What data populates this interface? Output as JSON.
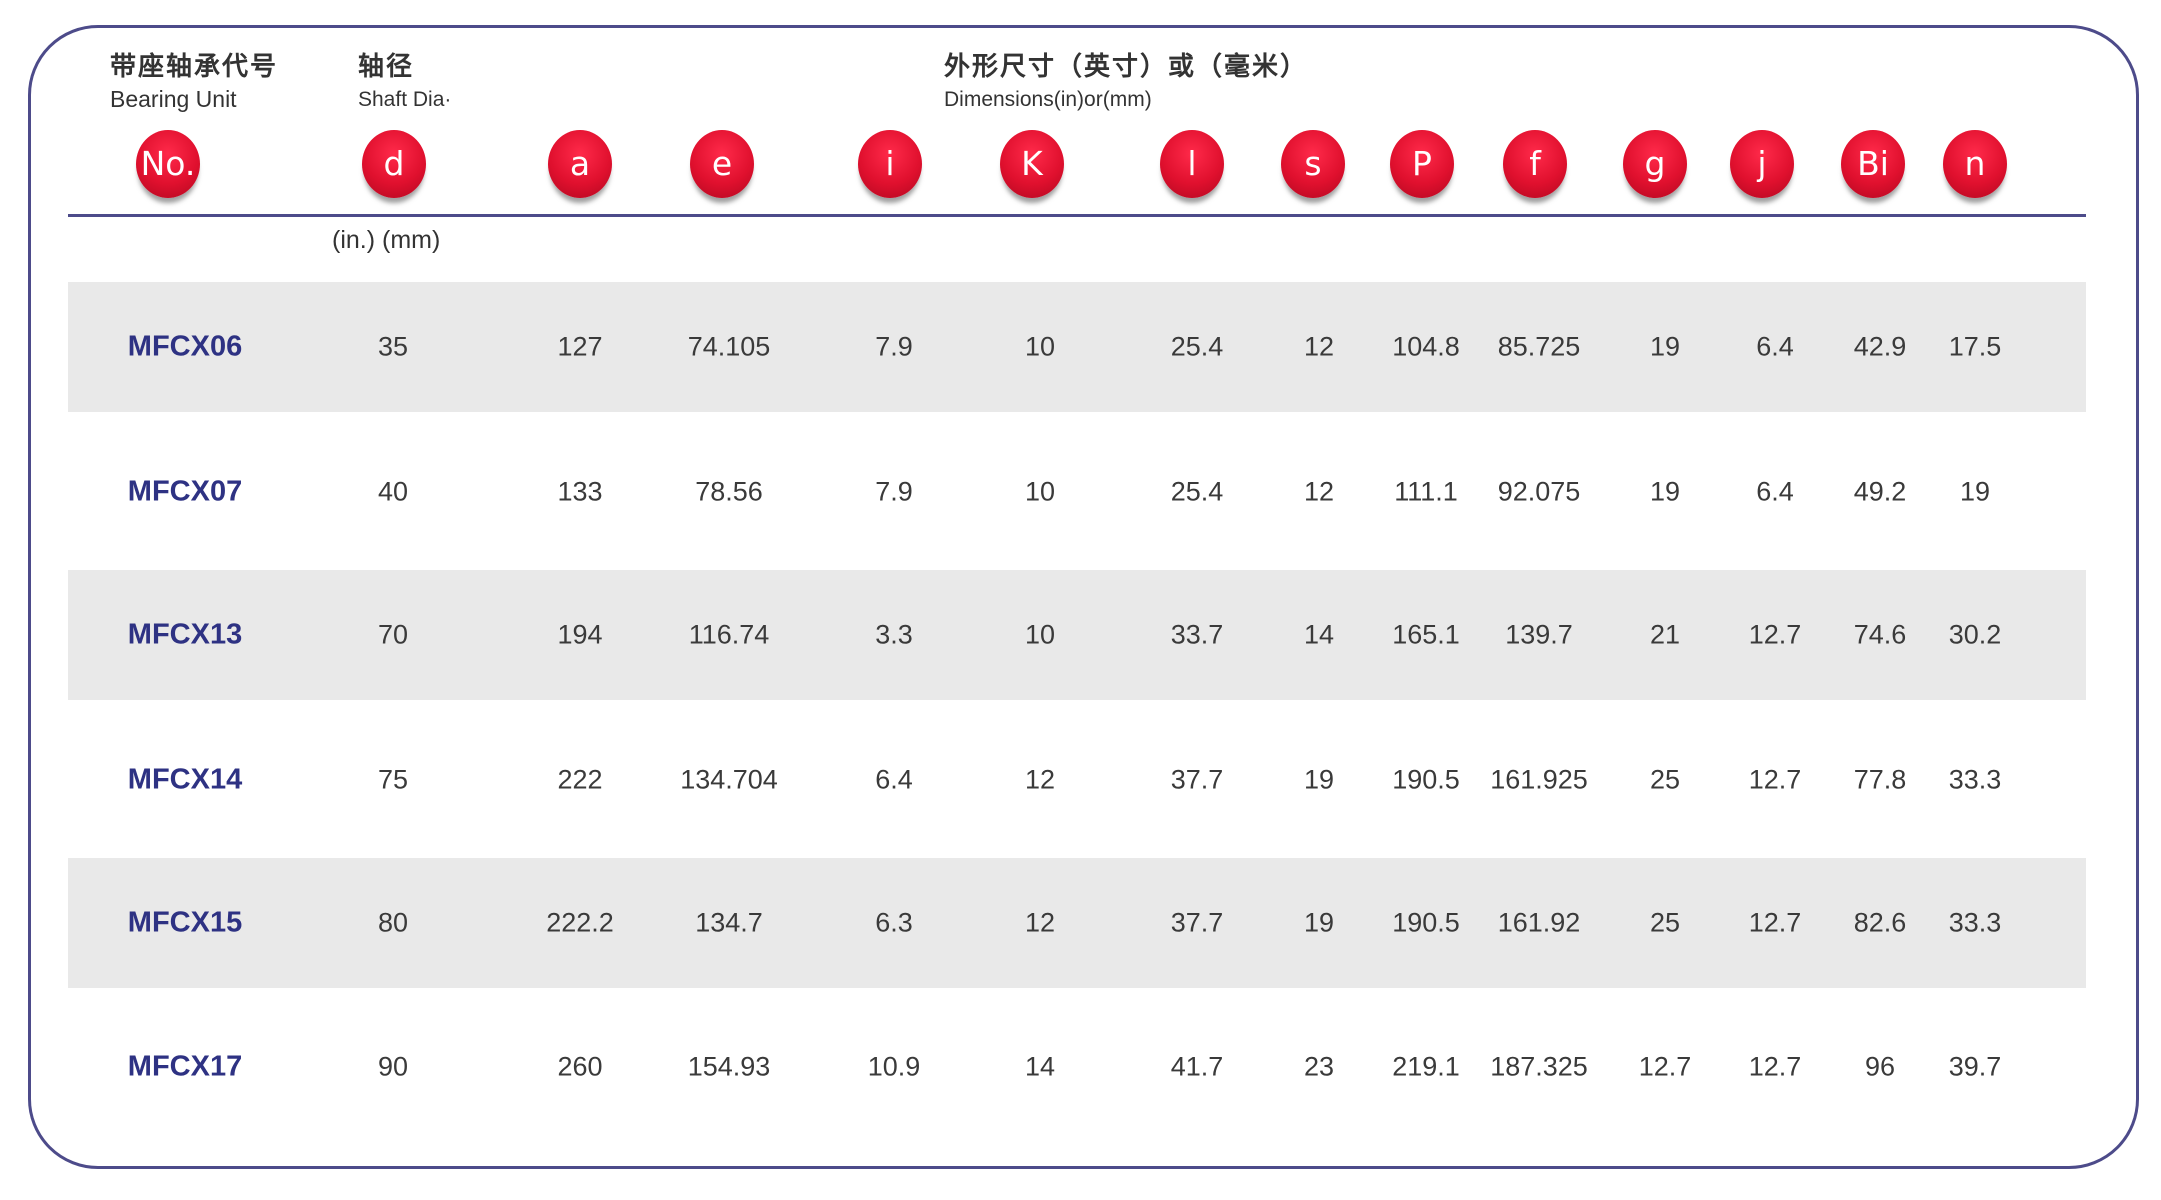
{
  "header": {
    "bearing_unit_cn": "带座轴承代号",
    "bearing_unit_en": "Bearing Unit",
    "shaft_cn": "轴径",
    "shaft_en": "Shaft Dia·",
    "dims_cn": "外形尺寸（英寸）或（毫米）",
    "dims_en": "Dimensions(in)or(mm)",
    "unit_note": "(in.) (mm)"
  },
  "columns": [
    "No.",
    "d",
    "a",
    "e",
    "i",
    "K",
    "l",
    "s",
    "P",
    "f",
    "g",
    "j",
    "Bi",
    "n"
  ],
  "colors": {
    "frame": "#4d4b8a",
    "bubble": "#e0102e",
    "code": "#2e3283",
    "stripe": "#e9e9e9"
  },
  "rows": [
    [
      "MFCX06",
      "35",
      "127",
      "74.105",
      "7.9",
      "10",
      "25.4",
      "12",
      "104.8",
      "85.725",
      "19",
      "6.4",
      "42.9",
      "17.5"
    ],
    [
      "MFCX07",
      "40",
      "133",
      "78.56",
      "7.9",
      "10",
      "25.4",
      "12",
      "111.1",
      "92.075",
      "19",
      "6.4",
      "49.2",
      "19"
    ],
    [
      "MFCX13",
      "70",
      "194",
      "116.74",
      "3.3",
      "10",
      "33.7",
      "14",
      "165.1",
      "139.7",
      "21",
      "12.7",
      "74.6",
      "30.2"
    ],
    [
      "MFCX14",
      "75",
      "222",
      "134.704",
      "6.4",
      "12",
      "37.7",
      "19",
      "190.5",
      "161.925",
      "25",
      "12.7",
      "77.8",
      "33.3"
    ],
    [
      "MFCX15",
      "80",
      "222.2",
      "134.7",
      "6.3",
      "12",
      "37.7",
      "19",
      "190.5",
      "161.92",
      "25",
      "12.7",
      "82.6",
      "33.3"
    ],
    [
      "MFCX17",
      "90",
      "260",
      "154.93",
      "10.9",
      "14",
      "41.7",
      "23",
      "219.1",
      "187.325",
      "12.7",
      "12.7",
      "96",
      "39.7"
    ]
  ]
}
